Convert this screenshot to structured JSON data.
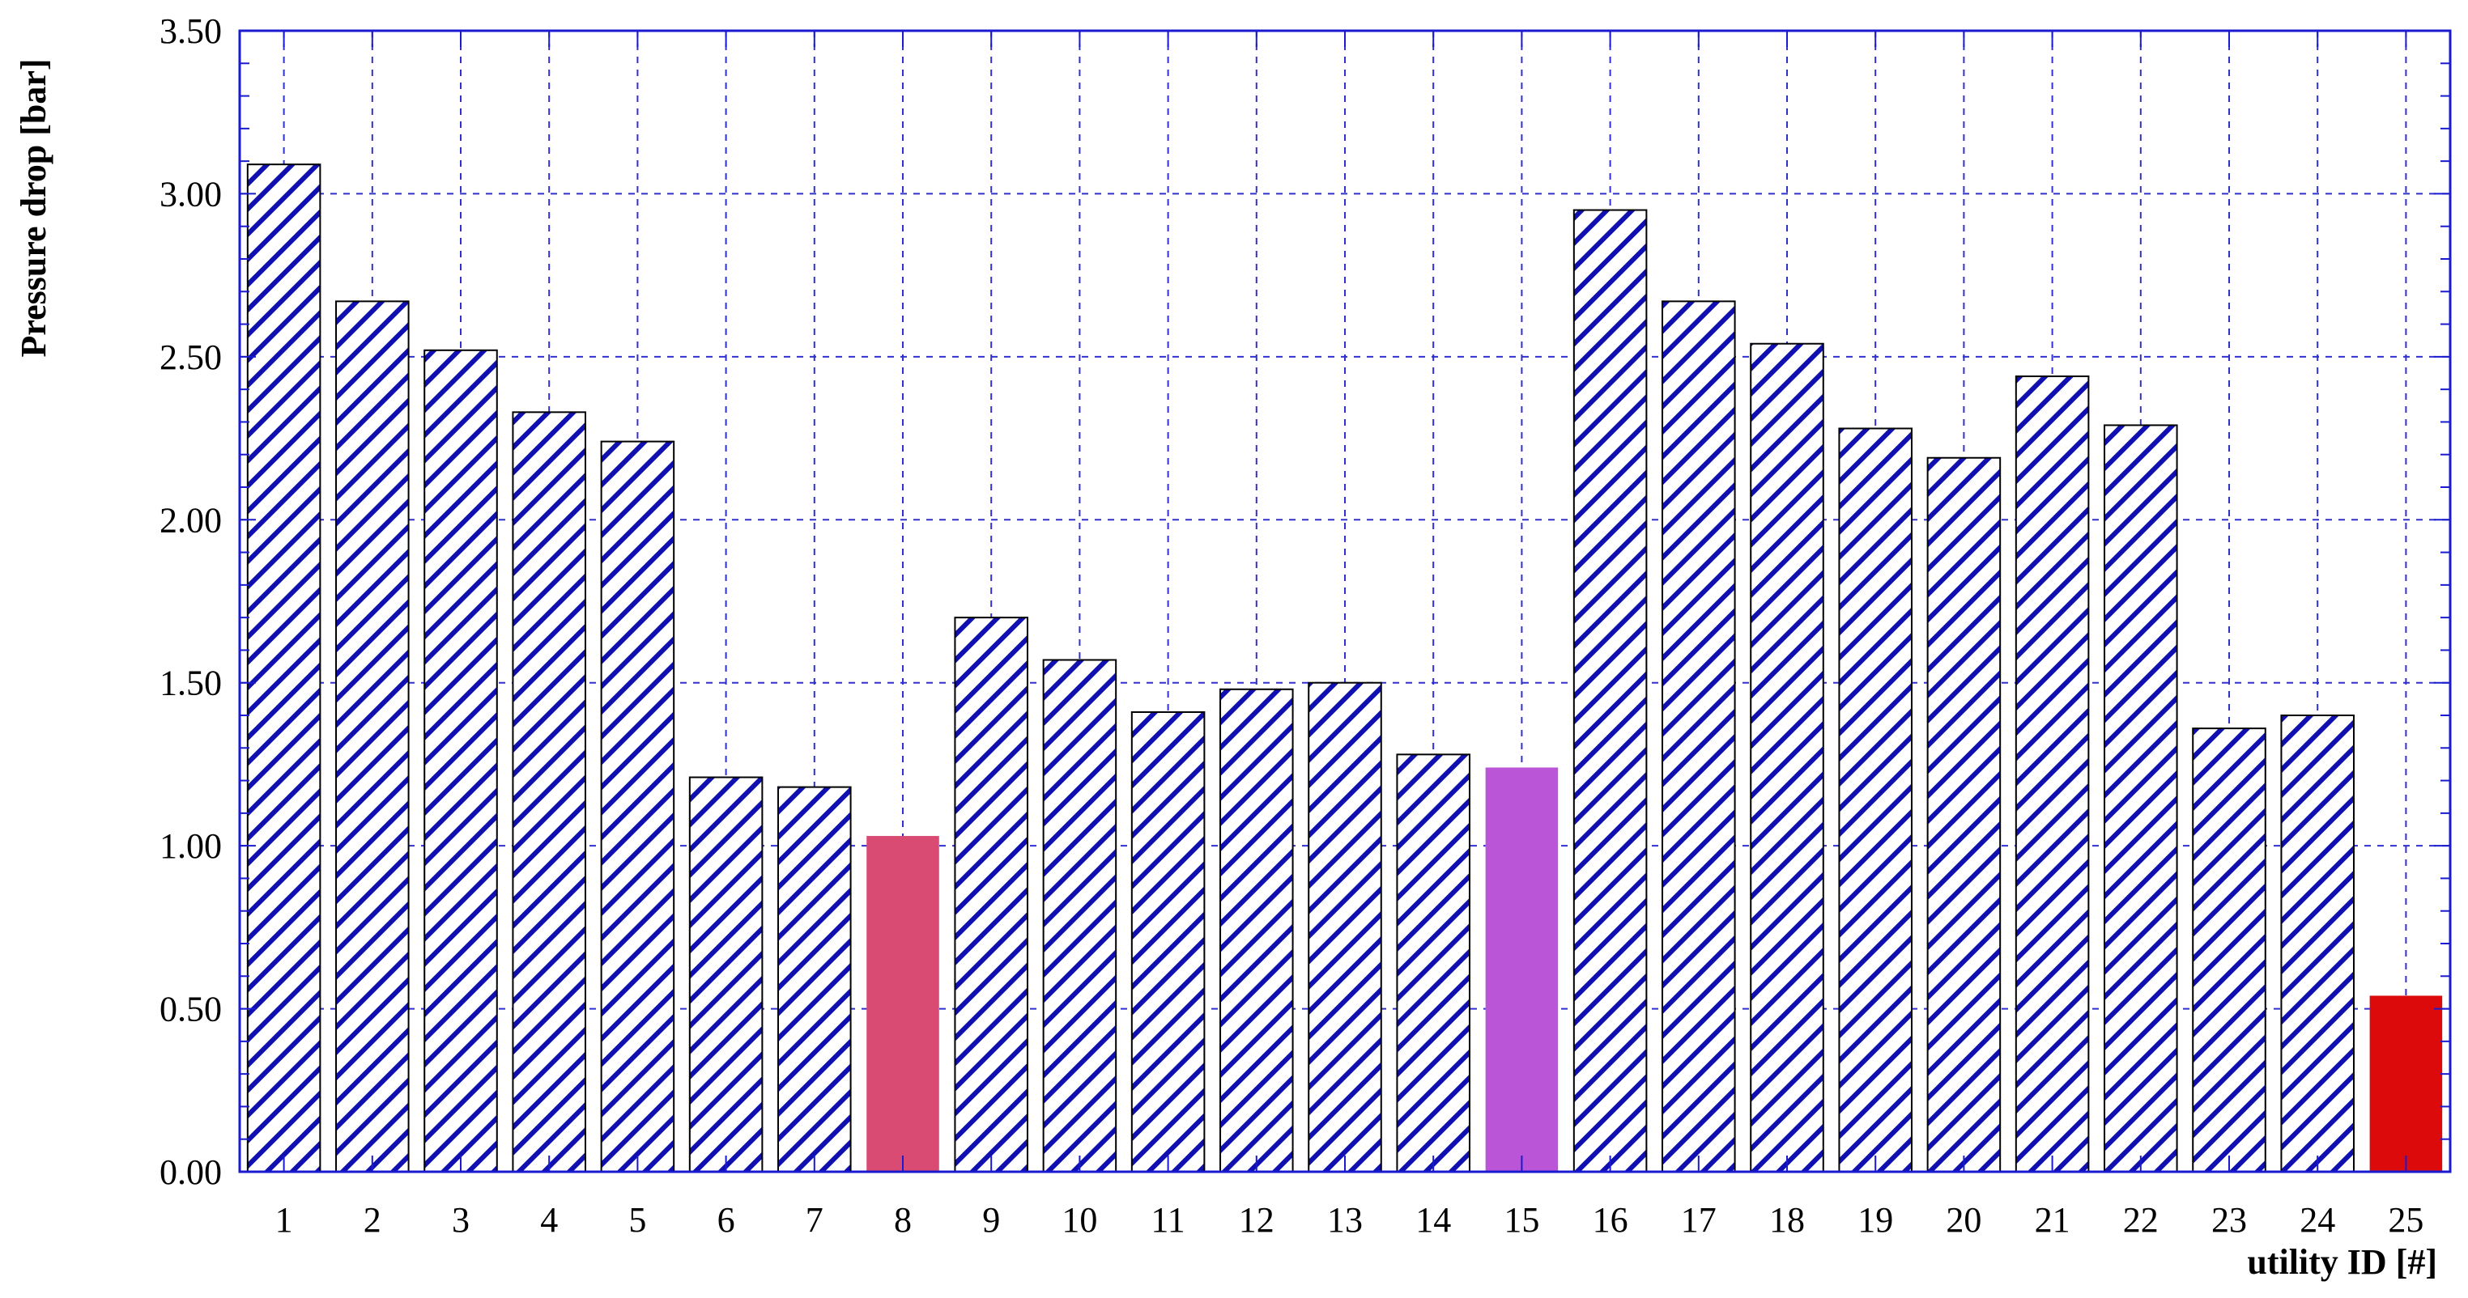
{
  "chart_data": {
    "type": "bar",
    "title": "",
    "xlabel": "utility ID [#]",
    "ylabel": "Pressure drop [bar]",
    "ylim": [
      0,
      3.5
    ],
    "yticks": [
      "0.00",
      "0.50",
      "1.00",
      "1.50",
      "2.00",
      "2.50",
      "3.00",
      "3.50"
    ],
    "grid": true,
    "categories": [
      "1",
      "2",
      "3",
      "4",
      "5",
      "6",
      "7",
      "8",
      "9",
      "10",
      "11",
      "12",
      "13",
      "14",
      "15",
      "16",
      "17",
      "18",
      "19",
      "20",
      "21",
      "22",
      "23",
      "24",
      "25"
    ],
    "values": [
      3.09,
      2.67,
      2.52,
      2.33,
      2.24,
      1.21,
      1.18,
      1.03,
      1.7,
      1.57,
      1.41,
      1.48,
      1.5,
      1.28,
      1.24,
      2.95,
      2.67,
      2.54,
      2.28,
      2.19,
      2.44,
      2.29,
      1.36,
      1.4,
      0.54
    ],
    "colors": {
      "hatch": "#1010b0",
      "grid": "#3030d0",
      "highlight": {
        "8": "#d94b72",
        "15": "#b955d6",
        "25": "#dc0a0a"
      }
    }
  }
}
